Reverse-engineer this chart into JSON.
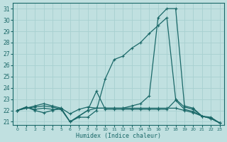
{
  "xlabel": "Humidex (Indice chaleur)",
  "bg_color": "#c0e0e0",
  "grid_color": "#a8d0d0",
  "line_color": "#1a6868",
  "xlim": [
    -0.5,
    23.5
  ],
  "ylim": [
    20.7,
    31.5
  ],
  "yticks": [
    21,
    22,
    23,
    24,
    25,
    26,
    27,
    28,
    29,
    30,
    31
  ],
  "xticks": [
    0,
    1,
    2,
    3,
    4,
    5,
    6,
    7,
    8,
    9,
    10,
    11,
    12,
    13,
    14,
    15,
    16,
    17,
    18,
    19,
    20,
    21,
    22,
    23
  ],
  "lines": [
    [
      22.0,
      22.3,
      22.1,
      22.2,
      22.1,
      22.1,
      21.0,
      21.5,
      22.0,
      23.7,
      22.1,
      22.1,
      22.1,
      22.1,
      22.1,
      22.1,
      22.1,
      22.1,
      22.9,
      22.1,
      21.9,
      21.5,
      21.3,
      20.9
    ],
    [
      22.0,
      22.2,
      22.4,
      22.6,
      22.4,
      22.2,
      21.7,
      22.1,
      22.3,
      22.2,
      22.2,
      22.2,
      22.2,
      22.2,
      22.2,
      22.2,
      22.2,
      22.2,
      22.2,
      22.0,
      21.8,
      21.5,
      21.4,
      20.9
    ],
    [
      22.0,
      22.3,
      22.0,
      21.8,
      22.0,
      22.2,
      21.0,
      21.4,
      21.4,
      22.0,
      24.8,
      26.5,
      26.8,
      27.5,
      28.0,
      28.8,
      29.5,
      30.2,
      23.0,
      22.3,
      22.1,
      21.5,
      21.3,
      20.9
    ],
    [
      22.0,
      22.2,
      22.3,
      22.4,
      22.3,
      22.1,
      21.0,
      21.5,
      22.0,
      22.2,
      22.2,
      22.2,
      22.2,
      22.4,
      22.6,
      23.3,
      30.2,
      31.0,
      31.0,
      22.4,
      22.2,
      21.5,
      21.3,
      20.9
    ]
  ]
}
